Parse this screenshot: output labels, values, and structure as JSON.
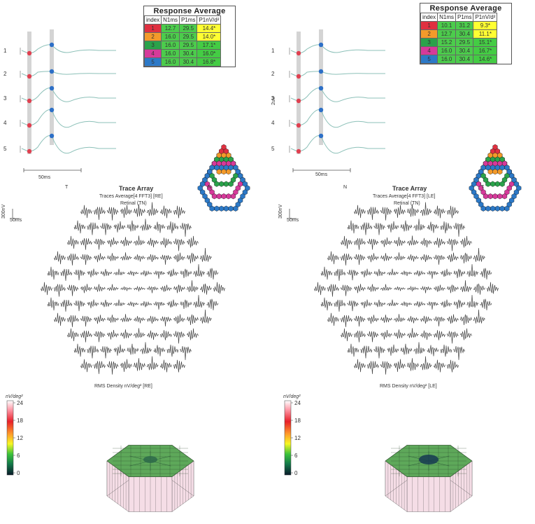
{
  "left": {
    "response_title": "Response Average",
    "headers": [
      "index",
      "N1ms",
      "P1ms",
      "P1nV/d²"
    ],
    "rows": [
      {
        "index": "1",
        "n1": "12.7",
        "p1": "29.5",
        "amp": "14.4*",
        "color": "#e03040",
        "ampColor": "#ffff33"
      },
      {
        "index": "2",
        "n1": "16.0",
        "p1": "29.5",
        "amp": "14.0*",
        "color": "#f39a2a",
        "ampColor": "#ffff33"
      },
      {
        "index": "3",
        "n1": "16.0",
        "p1": "29.5",
        "amp": "17.1*",
        "color": "#2aa24a",
        "ampColor": "#44cc44"
      },
      {
        "index": "4",
        "n1": "16.0",
        "p1": "30.4",
        "amp": "16.0*",
        "color": "#d63a9a",
        "ampColor": "#44cc44"
      },
      {
        "index": "5",
        "n1": "16.0",
        "p1": "30.4",
        "amp": "16.8*",
        "color": "#2c79c7",
        "ampColor": "#44cc44"
      }
    ],
    "ring_labels": [
      "1",
      "2",
      "3",
      "4",
      "5"
    ],
    "timescale": "50ms",
    "trace_array": {
      "title": "Trace Array",
      "line1": "Traces Average[4 FFT3] [RE]",
      "line2": "Retinal (TN)",
      "side_left": "T",
      "side_right": "N"
    },
    "scale_label": "300nV",
    "scale_time": "50ms",
    "density_label": "RMS Density nV/deg² [RE]",
    "colorbar_unit": "nV/deg²",
    "colorbar_ticks": [
      "24",
      "18",
      "12",
      "6",
      "0"
    ]
  },
  "right": {
    "response_title": "Response Average",
    "headers": [
      "index",
      "N1ms",
      "P1ms",
      "P1nV/d²"
    ],
    "rows": [
      {
        "index": "1",
        "n1": "10.1",
        "p1": "31.2",
        "amp": "9.3*",
        "color": "#e03040",
        "ampColor": "#ffff33"
      },
      {
        "index": "2",
        "n1": "12.7",
        "p1": "30.4",
        "amp": "11.1*",
        "color": "#f39a2a",
        "ampColor": "#ffff33"
      },
      {
        "index": "3",
        "n1": "15.2",
        "p1": "29.5",
        "amp": "15.1*",
        "color": "#2aa24a",
        "ampColor": "#44cc44"
      },
      {
        "index": "4",
        "n1": "16.0",
        "p1": "30.4",
        "amp": "16.7*",
        "color": "#d63a9a",
        "ampColor": "#44cc44"
      },
      {
        "index": "5",
        "n1": "16.0",
        "p1": "30.4",
        "amp": "14.6*",
        "color": "#2c79c7",
        "ampColor": "#44cc44"
      }
    ],
    "ring_labels": [
      "1",
      "2",
      "3",
      "4",
      "5"
    ],
    "timescale": "50ms",
    "side_scale": "2uV",
    "trace_array": {
      "title": "Trace Array",
      "line1": "Traces Average[4 FFT3] [LE]",
      "line2": "Retinal (TN)",
      "side_left": "N",
      "side_right": "T"
    },
    "scale_label": "300nV",
    "scale_time": "50ms",
    "density_label": "RMS Density nV/deg² [LE]",
    "colorbar_unit": "nV/deg²",
    "colorbar_ticks": [
      "24",
      "18",
      "12",
      "6",
      "0"
    ]
  }
}
